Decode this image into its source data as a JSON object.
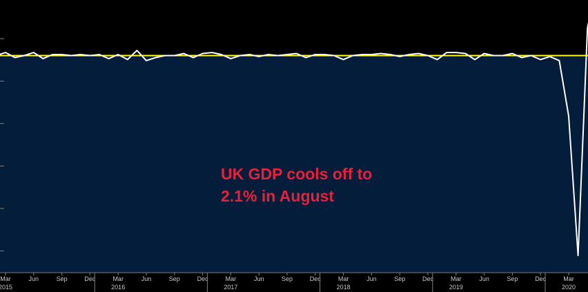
{
  "chart_data": {
    "type": "area",
    "annotation": [
      "UK GDP cools off to",
      "2.1% in August"
    ],
    "colors": {
      "background": "#000000",
      "area_fill": "#041d3a",
      "series_line": "#ffffff",
      "reference_line": "#ffff00",
      "annotation": "#e8213a",
      "axis_text": "#c8c8c8",
      "tick": "#7f7f7f"
    },
    "grid": false,
    "x": [
      "2015-02",
      "2015-03",
      "2015-04",
      "2015-05",
      "2015-06",
      "2015-07",
      "2015-08",
      "2015-09",
      "2015-10",
      "2015-11",
      "2015-12",
      "2016-01",
      "2016-02",
      "2016-03",
      "2016-04",
      "2016-05",
      "2016-06",
      "2016-07",
      "2016-08",
      "2016-09",
      "2016-10",
      "2016-11",
      "2016-12",
      "2017-01",
      "2017-02",
      "2017-03",
      "2017-04",
      "2017-05",
      "2017-06",
      "2017-07",
      "2017-08",
      "2017-09",
      "2017-10",
      "2017-11",
      "2017-12",
      "2018-01",
      "2018-02",
      "2018-03",
      "2018-04",
      "2018-05",
      "2018-06",
      "2018-07",
      "2018-08",
      "2018-09",
      "2018-10",
      "2018-11",
      "2018-12",
      "2019-01",
      "2019-02",
      "2019-03",
      "2019-04",
      "2019-05",
      "2019-06",
      "2019-07",
      "2019-08",
      "2019-09",
      "2019-10",
      "2019-11",
      "2019-12",
      "2020-01",
      "2020-02",
      "2020-03",
      "2020-04",
      "2020-05",
      "2020-06"
    ],
    "y": [
      0.0,
      0.3,
      -0.2,
      0.0,
      0.3,
      -0.3,
      0.1,
      0.1,
      0.0,
      0.1,
      0.0,
      0.1,
      -0.3,
      0.1,
      -0.4,
      0.5,
      -0.5,
      -0.2,
      0.0,
      0.0,
      0.2,
      -0.2,
      0.2,
      0.3,
      0.1,
      -0.3,
      0.0,
      0.1,
      -0.1,
      0.1,
      0.0,
      0.1,
      0.2,
      -0.2,
      0.1,
      0.1,
      0.0,
      -0.4,
      0.0,
      0.1,
      0.1,
      0.2,
      0.1,
      -0.1,
      0.1,
      0.2,
      0.0,
      -0.4,
      0.3,
      0.3,
      0.2,
      -0.4,
      0.2,
      0.0,
      0.0,
      0.2,
      -0.2,
      0.0,
      -0.4,
      -0.1,
      -0.5,
      -6.0,
      -19.8,
      2.7,
      7.5
    ],
    "reference_value": 0.0,
    "ylim": [
      -21.5,
      5.5
    ],
    "x_tick_months": [
      "Mar",
      "Jun",
      "Sep",
      "Dec",
      "Mar",
      "Jun",
      "Sep",
      "Dec",
      "Mar",
      "Jun",
      "Sep",
      "Dec",
      "Mar",
      "Jun",
      "Sep",
      "Dec",
      "Mar",
      "Jun",
      "Sep",
      "Dec",
      "Mar"
    ],
    "x_tick_dates": [
      "2015-03",
      "2015-06",
      "2015-09",
      "2015-12",
      "2016-03",
      "2016-06",
      "2016-09",
      "2016-12",
      "2017-03",
      "2017-06",
      "2017-09",
      "2017-12",
      "2018-03",
      "2018-06",
      "2018-09",
      "2018-12",
      "2019-03",
      "2019-06",
      "2019-09",
      "2019-12",
      "2020-03"
    ],
    "year_labels": [
      "2015",
      "2016",
      "2017",
      "2018",
      "2019",
      "2020"
    ]
  }
}
